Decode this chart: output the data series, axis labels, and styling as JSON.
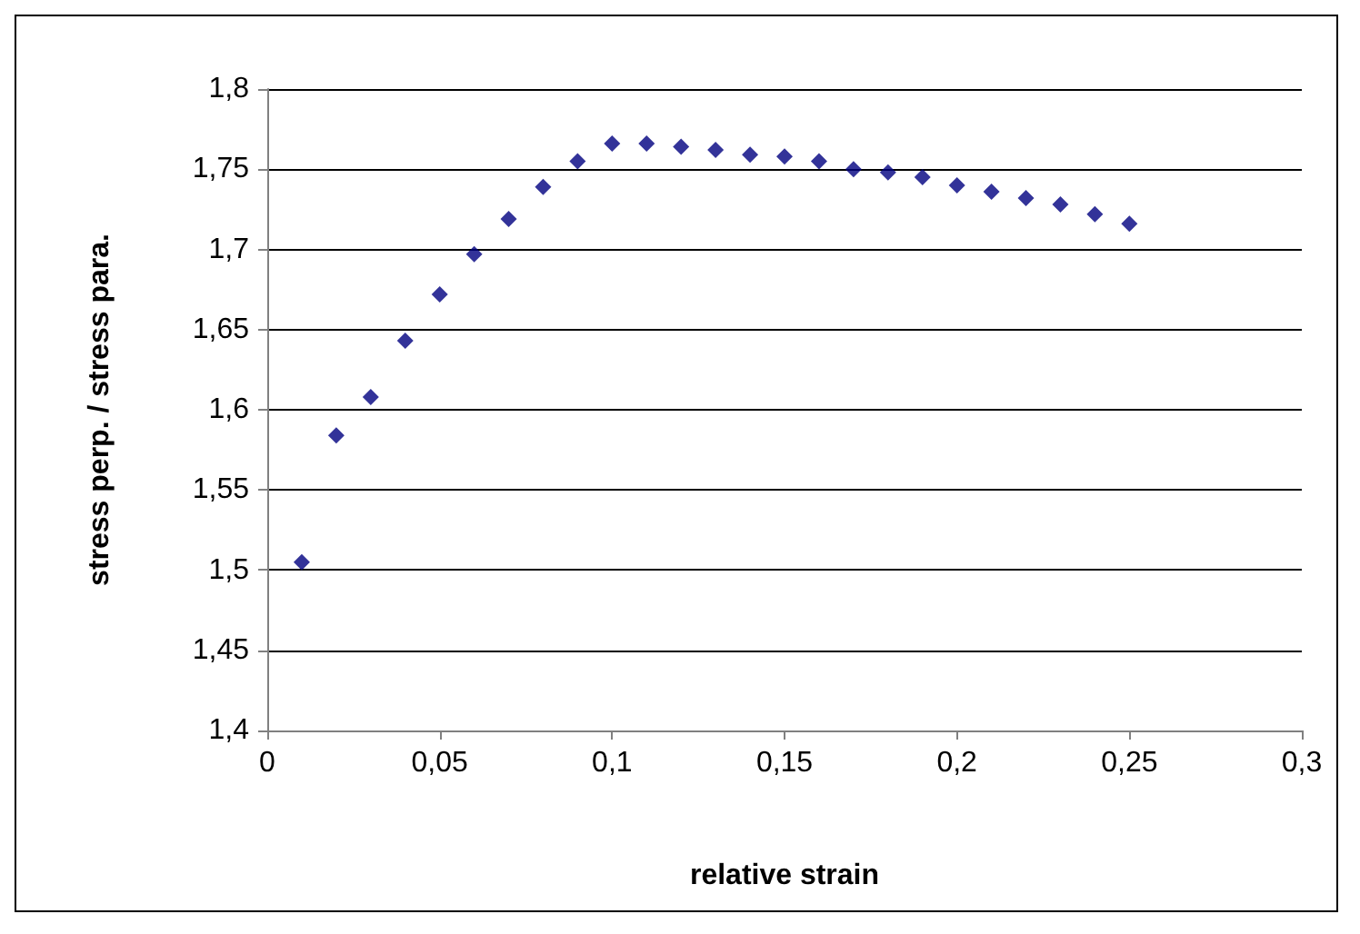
{
  "chart_data": {
    "type": "scatter",
    "xlabel": "relative strain",
    "ylabel": "stress perp. / stress para.",
    "x": [
      0.01,
      0.02,
      0.03,
      0.04,
      0.05,
      0.06,
      0.07,
      0.08,
      0.09,
      0.1,
      0.11,
      0.12,
      0.13,
      0.14,
      0.15,
      0.16,
      0.17,
      0.18,
      0.19,
      0.2,
      0.21,
      0.22,
      0.23,
      0.24,
      0.25
    ],
    "series": [
      {
        "color": "#000080",
        "values": [
          1.505,
          1.584,
          1.608,
          1.643,
          1.672,
          1.697,
          1.719,
          1.739,
          1.755,
          1.766,
          1.766,
          1.764,
          1.762,
          1.759,
          1.758,
          1.755,
          1.75,
          1.748,
          1.745,
          1.74,
          1.736,
          1.732,
          1.728,
          1.722,
          1.716
        ]
      }
    ],
    "xlim": [
      0,
      0.3
    ],
    "xticks": [
      0,
      {
        "value": 0.05,
        "label": "0,05"
      },
      {
        "value": 0.1,
        "label": "0,1"
      },
      {
        "value": 0.15,
        "label": "0,15"
      },
      {
        "value": 0.2,
        "label": "0,2"
      },
      {
        "value": 0.25,
        "label": "0,25"
      },
      {
        "value": 0.3,
        "label": "0,3"
      }
    ],
    "ylim": [
      1.4,
      1.8
    ],
    "yticks": [
      {
        "value": 1.4,
        "label": "1,4"
      },
      {
        "value": 1.45,
        "label": "1,45"
      },
      {
        "value": 1.5,
        "label": "1,5"
      },
      {
        "value": 1.55,
        "label": "1,55"
      },
      {
        "value": 1.6,
        "label": "1,6"
      },
      {
        "value": 1.65,
        "label": "1,65"
      },
      {
        "value": 1.7,
        "label": "1,7"
      },
      {
        "value": 1.75,
        "label": "1,75"
      },
      {
        "value": 1.8,
        "label": "1,8"
      }
    ],
    "grid": "y",
    "marker": "diamond"
  }
}
